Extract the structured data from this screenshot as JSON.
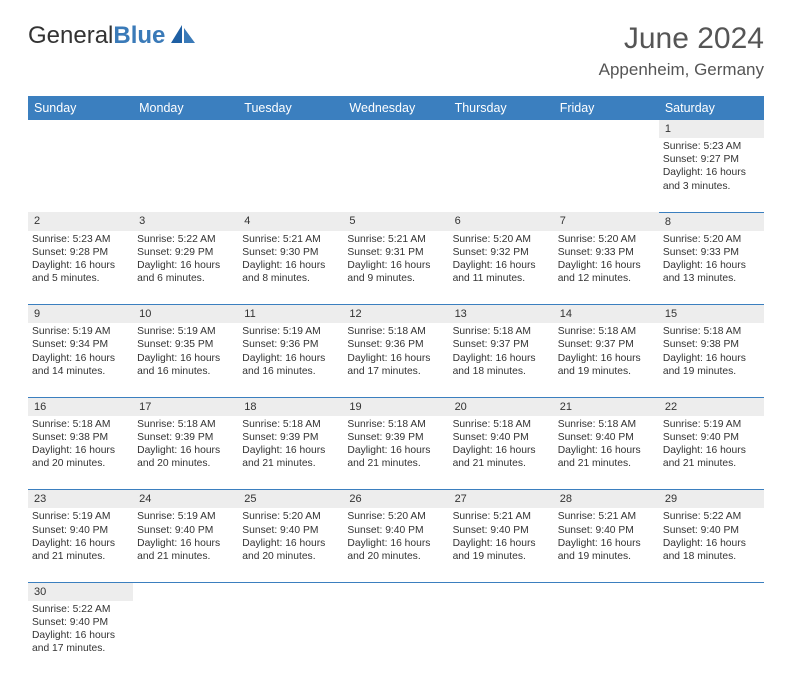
{
  "logo": {
    "part1": "General",
    "part2": "Blue"
  },
  "title": "June 2024",
  "location": "Appenheim, Germany",
  "colors": {
    "header_bg": "#3b7fbf",
    "header_text": "#ffffff",
    "daynum_bg": "#ededed",
    "border": "#3b7fbf",
    "logo_blue": "#3a7ab8",
    "text": "#333333",
    "page_bg": "#ffffff"
  },
  "day_headers": [
    "Sunday",
    "Monday",
    "Tuesday",
    "Wednesday",
    "Thursday",
    "Friday",
    "Saturday"
  ],
  "weeks": [
    {
      "nums": [
        "",
        "",
        "",
        "",
        "",
        "",
        "1"
      ],
      "cells": [
        null,
        null,
        null,
        null,
        null,
        null,
        {
          "sr": "Sunrise: 5:23 AM",
          "ss": "Sunset: 9:27 PM",
          "dl": "Daylight: 16 hours and 3 minutes."
        }
      ]
    },
    {
      "nums": [
        "2",
        "3",
        "4",
        "5",
        "6",
        "7",
        "8"
      ],
      "cells": [
        {
          "sr": "Sunrise: 5:23 AM",
          "ss": "Sunset: 9:28 PM",
          "dl": "Daylight: 16 hours and 5 minutes."
        },
        {
          "sr": "Sunrise: 5:22 AM",
          "ss": "Sunset: 9:29 PM",
          "dl": "Daylight: 16 hours and 6 minutes."
        },
        {
          "sr": "Sunrise: 5:21 AM",
          "ss": "Sunset: 9:30 PM",
          "dl": "Daylight: 16 hours and 8 minutes."
        },
        {
          "sr": "Sunrise: 5:21 AM",
          "ss": "Sunset: 9:31 PM",
          "dl": "Daylight: 16 hours and 9 minutes."
        },
        {
          "sr": "Sunrise: 5:20 AM",
          "ss": "Sunset: 9:32 PM",
          "dl": "Daylight: 16 hours and 11 minutes."
        },
        {
          "sr": "Sunrise: 5:20 AM",
          "ss": "Sunset: 9:33 PM",
          "dl": "Daylight: 16 hours and 12 minutes."
        },
        {
          "sr": "Sunrise: 5:20 AM",
          "ss": "Sunset: 9:33 PM",
          "dl": "Daylight: 16 hours and 13 minutes."
        }
      ]
    },
    {
      "nums": [
        "9",
        "10",
        "11",
        "12",
        "13",
        "14",
        "15"
      ],
      "cells": [
        {
          "sr": "Sunrise: 5:19 AM",
          "ss": "Sunset: 9:34 PM",
          "dl": "Daylight: 16 hours and 14 minutes."
        },
        {
          "sr": "Sunrise: 5:19 AM",
          "ss": "Sunset: 9:35 PM",
          "dl": "Daylight: 16 hours and 16 minutes."
        },
        {
          "sr": "Sunrise: 5:19 AM",
          "ss": "Sunset: 9:36 PM",
          "dl": "Daylight: 16 hours and 16 minutes."
        },
        {
          "sr": "Sunrise: 5:18 AM",
          "ss": "Sunset: 9:36 PM",
          "dl": "Daylight: 16 hours and 17 minutes."
        },
        {
          "sr": "Sunrise: 5:18 AM",
          "ss": "Sunset: 9:37 PM",
          "dl": "Daylight: 16 hours and 18 minutes."
        },
        {
          "sr": "Sunrise: 5:18 AM",
          "ss": "Sunset: 9:37 PM",
          "dl": "Daylight: 16 hours and 19 minutes."
        },
        {
          "sr": "Sunrise: 5:18 AM",
          "ss": "Sunset: 9:38 PM",
          "dl": "Daylight: 16 hours and 19 minutes."
        }
      ]
    },
    {
      "nums": [
        "16",
        "17",
        "18",
        "19",
        "20",
        "21",
        "22"
      ],
      "cells": [
        {
          "sr": "Sunrise: 5:18 AM",
          "ss": "Sunset: 9:38 PM",
          "dl": "Daylight: 16 hours and 20 minutes."
        },
        {
          "sr": "Sunrise: 5:18 AM",
          "ss": "Sunset: 9:39 PM",
          "dl": "Daylight: 16 hours and 20 minutes."
        },
        {
          "sr": "Sunrise: 5:18 AM",
          "ss": "Sunset: 9:39 PM",
          "dl": "Daylight: 16 hours and 21 minutes."
        },
        {
          "sr": "Sunrise: 5:18 AM",
          "ss": "Sunset: 9:39 PM",
          "dl": "Daylight: 16 hours and 21 minutes."
        },
        {
          "sr": "Sunrise: 5:18 AM",
          "ss": "Sunset: 9:40 PM",
          "dl": "Daylight: 16 hours and 21 minutes."
        },
        {
          "sr": "Sunrise: 5:18 AM",
          "ss": "Sunset: 9:40 PM",
          "dl": "Daylight: 16 hours and 21 minutes."
        },
        {
          "sr": "Sunrise: 5:19 AM",
          "ss": "Sunset: 9:40 PM",
          "dl": "Daylight: 16 hours and 21 minutes."
        }
      ]
    },
    {
      "nums": [
        "23",
        "24",
        "25",
        "26",
        "27",
        "28",
        "29"
      ],
      "cells": [
        {
          "sr": "Sunrise: 5:19 AM",
          "ss": "Sunset: 9:40 PM",
          "dl": "Daylight: 16 hours and 21 minutes."
        },
        {
          "sr": "Sunrise: 5:19 AM",
          "ss": "Sunset: 9:40 PM",
          "dl": "Daylight: 16 hours and 21 minutes."
        },
        {
          "sr": "Sunrise: 5:20 AM",
          "ss": "Sunset: 9:40 PM",
          "dl": "Daylight: 16 hours and 20 minutes."
        },
        {
          "sr": "Sunrise: 5:20 AM",
          "ss": "Sunset: 9:40 PM",
          "dl": "Daylight: 16 hours and 20 minutes."
        },
        {
          "sr": "Sunrise: 5:21 AM",
          "ss": "Sunset: 9:40 PM",
          "dl": "Daylight: 16 hours and 19 minutes."
        },
        {
          "sr": "Sunrise: 5:21 AM",
          "ss": "Sunset: 9:40 PM",
          "dl": "Daylight: 16 hours and 19 minutes."
        },
        {
          "sr": "Sunrise: 5:22 AM",
          "ss": "Sunset: 9:40 PM",
          "dl": "Daylight: 16 hours and 18 minutes."
        }
      ]
    },
    {
      "nums": [
        "30",
        "",
        "",
        "",
        "",
        "",
        ""
      ],
      "cells": [
        {
          "sr": "Sunrise: 5:22 AM",
          "ss": "Sunset: 9:40 PM",
          "dl": "Daylight: 16 hours and 17 minutes."
        },
        null,
        null,
        null,
        null,
        null,
        null
      ]
    }
  ]
}
